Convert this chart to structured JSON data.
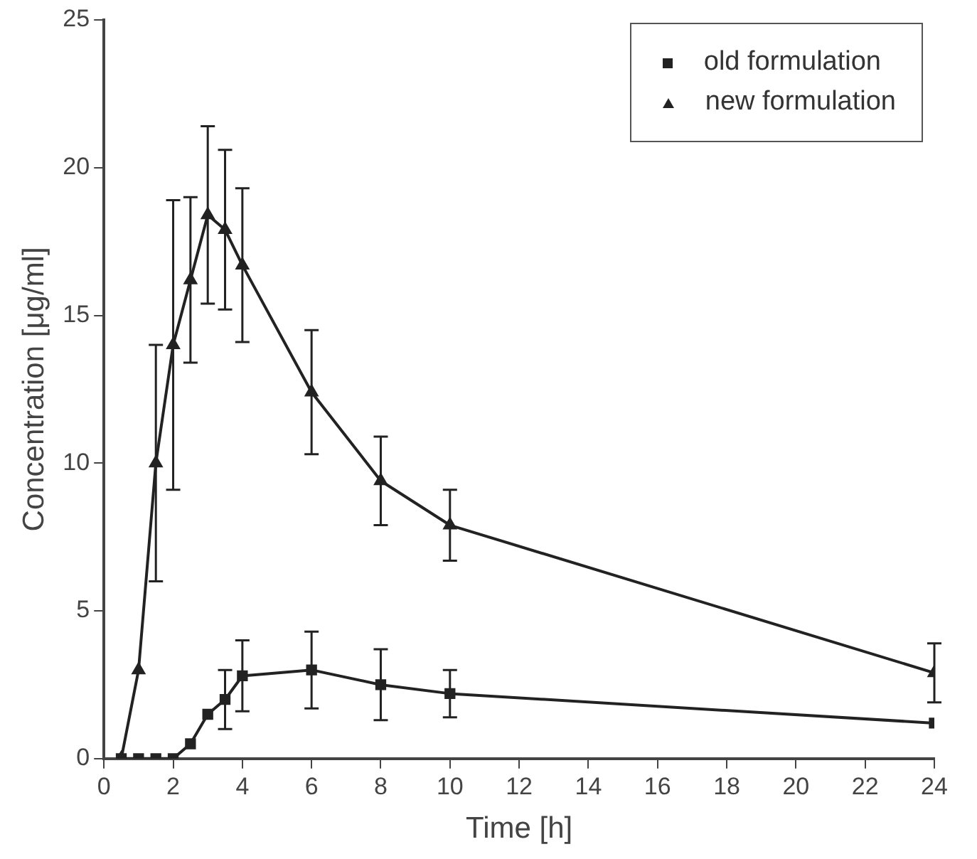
{
  "chart_data": {
    "type": "line",
    "xlabel": "Time [h]",
    "ylabel": "Concentration [μg/ml]",
    "xlim": [
      0,
      24
    ],
    "xticks": [
      0,
      2,
      4,
      6,
      8,
      10,
      12,
      14,
      16,
      18,
      20,
      22,
      24
    ],
    "ylim": [
      0,
      25
    ],
    "yticks": [
      0,
      5,
      10,
      15,
      20,
      25
    ],
    "grid": false,
    "legend": "top right",
    "line_style": "solid",
    "series": [
      {
        "name": "old formulation",
        "color": "#222222",
        "marker": "square",
        "x": [
          0.5,
          1,
          1.5,
          2,
          2.5,
          3,
          3.5,
          4,
          6,
          8,
          10,
          24
        ],
        "values": [
          0,
          0,
          0,
          0,
          0.5,
          1.5,
          2.0,
          2.8,
          3.0,
          2.5,
          2.2,
          1.2
        ],
        "errors": [
          null,
          null,
          null,
          null,
          null,
          null,
          1.0,
          1.2,
          1.3,
          1.2,
          0.8,
          null
        ]
      },
      {
        "name": "new formulation",
        "color": "#222222",
        "marker": "triangle",
        "x": [
          0.5,
          1,
          1.5,
          2,
          2.5,
          3,
          3.5,
          4,
          6,
          8,
          10,
          24
        ],
        "values": [
          0,
          3.0,
          10.0,
          14.0,
          16.2,
          18.4,
          17.9,
          16.7,
          12.4,
          9.4,
          7.9,
          2.9
        ],
        "errors": [
          null,
          null,
          4.0,
          4.9,
          2.8,
          3.0,
          2.7,
          2.6,
          2.1,
          1.5,
          1.2,
          1.0
        ]
      }
    ]
  }
}
